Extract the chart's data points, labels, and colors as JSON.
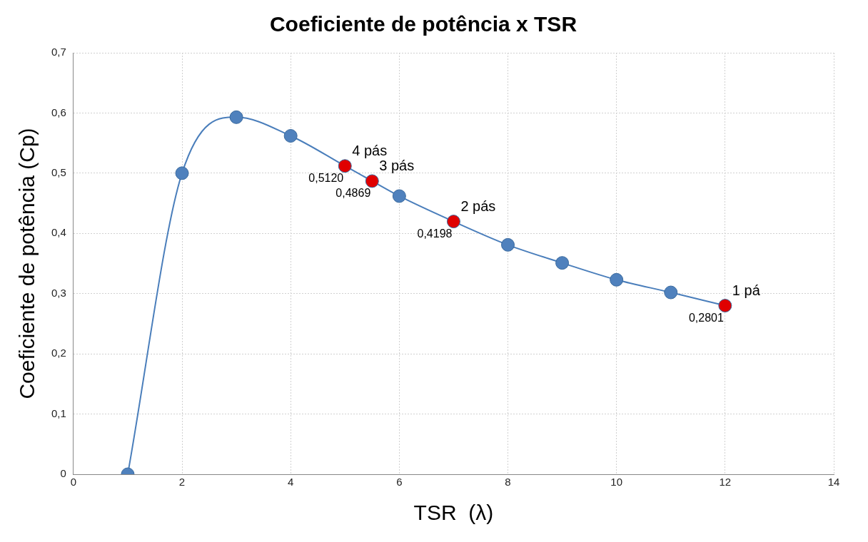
{
  "chart_data": {
    "type": "line",
    "title": "Coeficiente de potência x TSR",
    "xlabel": "TSR  (λ)",
    "ylabel": "Coeficiente de potência (Cp)",
    "x": [
      1,
      2,
      3,
      4,
      5,
      5.5,
      6,
      7,
      8,
      9,
      10,
      11,
      12
    ],
    "series": [
      {
        "color": "#4a7ebb",
        "values": [
          0,
          0.5,
          0.593,
          0.562,
          0.512,
          0.4869,
          0.462,
          0.4198,
          0.381,
          0.351,
          0.323,
          0.302,
          0.2801
        ],
        "colors": [
          "#4f81bd",
          "#4f81bd",
          "#4f81bd",
          "#4f81bd",
          "#e00000",
          "#e00000",
          "#4f81bd",
          "#e00000",
          "#4f81bd",
          "#4f81bd",
          "#4f81bd",
          "#4f81bd",
          "#e00000"
        ],
        "value_labels": [
          null,
          null,
          null,
          null,
          "0,5120",
          "0,4869",
          null,
          "0,4198",
          null,
          null,
          null,
          null,
          "0,2801"
        ]
      }
    ],
    "annotations": [
      {
        "text": "4 pás",
        "x": 5,
        "y": 0.512
      },
      {
        "text": "3 pás",
        "x": 5.5,
        "y": 0.4869
      },
      {
        "text": "2 pás",
        "x": 7,
        "y": 0.4198
      },
      {
        "text": "1 pá",
        "x": 12,
        "y": 0.2801
      }
    ],
    "xlim": [
      0,
      14
    ],
    "xticks": [
      0,
      2,
      4,
      6,
      8,
      10,
      12,
      14
    ],
    "ylim": [
      0,
      0.7
    ],
    "yticks": [
      0,
      {
        "value": 0.1,
        "label": "0,1"
      },
      {
        "value": 0.2,
        "label": "0,2"
      },
      {
        "value": 0.3,
        "label": "0,3"
      },
      {
        "value": 0.4,
        "label": "0,4"
      },
      {
        "value": 0.5,
        "label": "0,5"
      },
      {
        "value": 0.6,
        "label": "0,6"
      },
      {
        "value": 0.7,
        "label": "0,7"
      }
    ],
    "grid": true,
    "legend": false,
    "marker": "circle",
    "line_style": "solid"
  }
}
